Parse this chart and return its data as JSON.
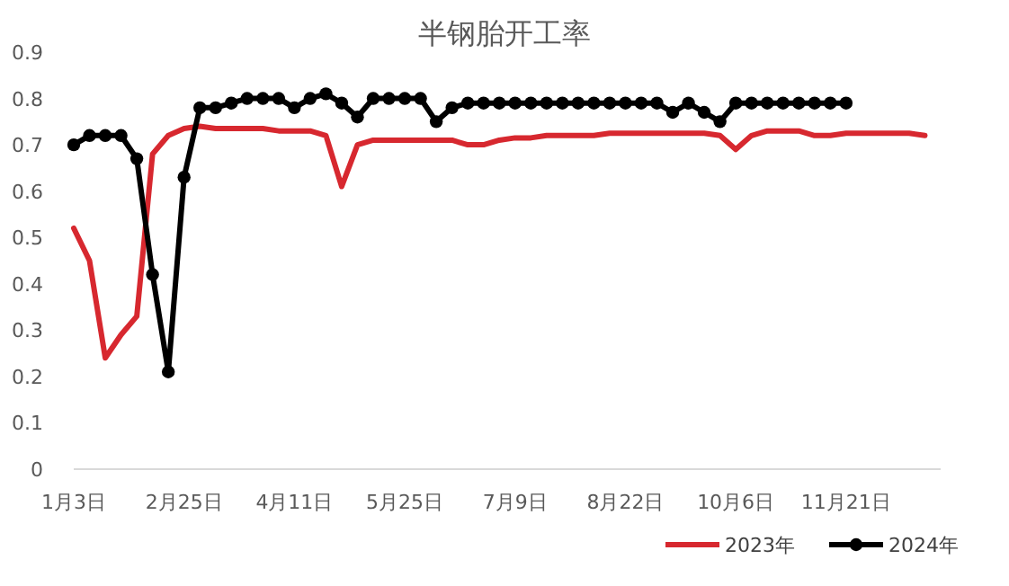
{
  "chart_data": {
    "type": "line",
    "title": "半钢胎开工率",
    "categories": [
      "1月3日",
      null,
      null,
      null,
      null,
      null,
      null,
      "2月25日",
      null,
      null,
      null,
      null,
      null,
      null,
      "4月11日",
      null,
      null,
      null,
      null,
      null,
      null,
      "5月25日",
      null,
      null,
      null,
      null,
      null,
      null,
      "7月9日",
      null,
      null,
      null,
      null,
      null,
      null,
      "8月22日",
      null,
      null,
      null,
      null,
      null,
      null,
      "10月6日",
      null,
      null,
      null,
      null,
      null,
      null,
      "11月21日",
      null,
      null,
      null,
      null,
      null,
      null
    ],
    "series": [
      {
        "name": "2023年",
        "color": "#d7282f",
        "marker": "none",
        "values": [
          0.52,
          0.45,
          0.24,
          0.29,
          0.33,
          0.68,
          0.72,
          0.735,
          0.74,
          0.735,
          0.735,
          0.735,
          0.735,
          0.73,
          0.73,
          0.73,
          0.72,
          0.61,
          0.7,
          0.71,
          0.71,
          0.71,
          0.71,
          0.71,
          0.71,
          0.7,
          0.7,
          0.71,
          0.715,
          0.715,
          0.72,
          0.72,
          0.72,
          0.72,
          0.725,
          0.725,
          0.725,
          0.725,
          0.725,
          0.725,
          0.725,
          0.72,
          0.69,
          0.72,
          0.73,
          0.73,
          0.73,
          0.72,
          0.72,
          0.725,
          0.725,
          0.725,
          0.725,
          0.725,
          0.72,
          null
        ]
      },
      {
        "name": "2024年",
        "color": "#000000",
        "marker": "circle",
        "values": [
          0.7,
          0.72,
          0.72,
          0.72,
          0.67,
          0.42,
          0.21,
          0.63,
          0.78,
          0.78,
          0.79,
          0.8,
          0.8,
          0.8,
          0.78,
          0.8,
          0.81,
          0.79,
          0.76,
          0.8,
          0.8,
          0.8,
          0.8,
          0.75,
          0.78,
          0.79,
          0.79,
          0.79,
          0.79,
          0.79,
          0.79,
          0.79,
          0.79,
          0.79,
          0.79,
          0.79,
          0.79,
          0.79,
          0.77,
          0.79,
          0.77,
          0.75,
          0.79,
          0.79,
          0.79,
          0.79,
          0.79,
          0.79,
          0.79,
          0.79,
          null,
          null,
          null,
          null,
          null,
          null
        ]
      }
    ],
    "ylim": [
      0,
      0.9
    ],
    "yticks": [
      0,
      0.1,
      0.2,
      0.3,
      0.4,
      0.5,
      0.6,
      0.7,
      0.8,
      0.9
    ],
    "grid": false,
    "legend": "bottom right"
  }
}
